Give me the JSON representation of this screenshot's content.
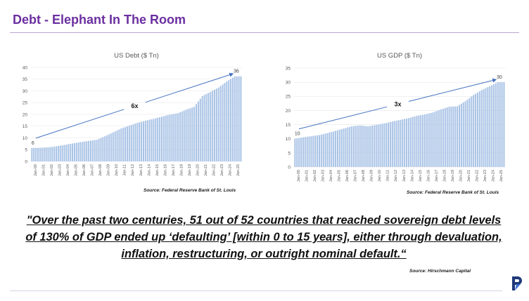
{
  "page": {
    "title": "Debt - Elephant In The Room",
    "quote": "\"Over the past two centuries, 51 out of 52 countries that reached sovereign debt levels of 130% of GDP ended up ‘defaulting’ [within 0 to 15 years], either through devaluation, inflation, restructuring, or outright nominal default.“",
    "quote_source": "Source: Hirschmann Capital",
    "logo": "company-logo",
    "colors": {
      "title": "#6b2fa0",
      "bars": "#a9c3e6",
      "arrow": "#4472c4",
      "gridline": "#e6e6e6"
    }
  },
  "chart_data": [
    {
      "type": "bar",
      "title": "US Debt ($ Tn)",
      "source": "Source: Federal Reserve Bank of St. Louis",
      "xlabel": "",
      "ylabel": "",
      "ylim": [
        0,
        40
      ],
      "yticks": [
        0,
        5,
        10,
        15,
        20,
        25,
        30,
        35,
        40
      ],
      "categories": [
        "Jan-00",
        "Jan-01",
        "Jan-02",
        "Jan-03",
        "Jan-04",
        "Jan-05",
        "Jan-06",
        "Jan-07",
        "Jan-08",
        "Jan-09",
        "Jan-10",
        "Jan-11",
        "Jan-12",
        "Jan-13",
        "Jan-14",
        "Jan-15",
        "Jan-16",
        "Jan-17",
        "Jan-18",
        "Jan-19",
        "Jan-20",
        "Jan-21",
        "Jan-22",
        "Jan-23",
        "Jan-24",
        "Jan-25"
      ],
      "values": [
        5.7,
        5.8,
        6.0,
        6.4,
        7.0,
        7.6,
        8.2,
        8.7,
        9.2,
        10.7,
        12.3,
        14.0,
        15.2,
        16.4,
        17.3,
        18.1,
        19.0,
        19.9,
        20.5,
        22.0,
        23.2,
        27.8,
        29.6,
        31.4,
        34.0,
        36.2
      ],
      "annotations": {
        "start_label": "6",
        "end_label": "36",
        "multiple_label": "6x"
      },
      "grid": true
    },
    {
      "type": "bar",
      "title": "US GDP ($ Tn)",
      "source": "Source: Federal Reserve Bank of St. Louis",
      "xlabel": "",
      "ylabel": "",
      "ylim": [
        0,
        35
      ],
      "yticks": [
        0,
        5,
        10,
        15,
        20,
        25,
        30,
        35
      ],
      "categories": [
        "Jan-00",
        "Jan-01",
        "Jan-02",
        "Jan-03",
        "Jan-04",
        "Jan-05",
        "Jan-06",
        "Jan-07",
        "Jan-08",
        "Jan-09",
        "Jan-10",
        "Jan-11",
        "Jan-12",
        "Jan-13",
        "Jan-14",
        "Jan-15",
        "Jan-16",
        "Jan-17",
        "Jan-18",
        "Jan-19",
        "Jan-20",
        "Jan-21",
        "Jan-22",
        "Jan-23",
        "Jan-24",
        "Jan-25"
      ],
      "values": [
        10.0,
        10.5,
        10.9,
        11.3,
        12.0,
        12.8,
        13.6,
        14.4,
        14.7,
        14.4,
        14.9,
        15.4,
        16.1,
        16.7,
        17.3,
        18.1,
        18.6,
        19.3,
        20.4,
        21.3,
        21.5,
        23.3,
        25.5,
        27.2,
        28.6,
        30.0
      ],
      "annotations": {
        "start_label": "10",
        "end_label": "30",
        "multiple_label": "3x"
      },
      "grid": true
    }
  ]
}
